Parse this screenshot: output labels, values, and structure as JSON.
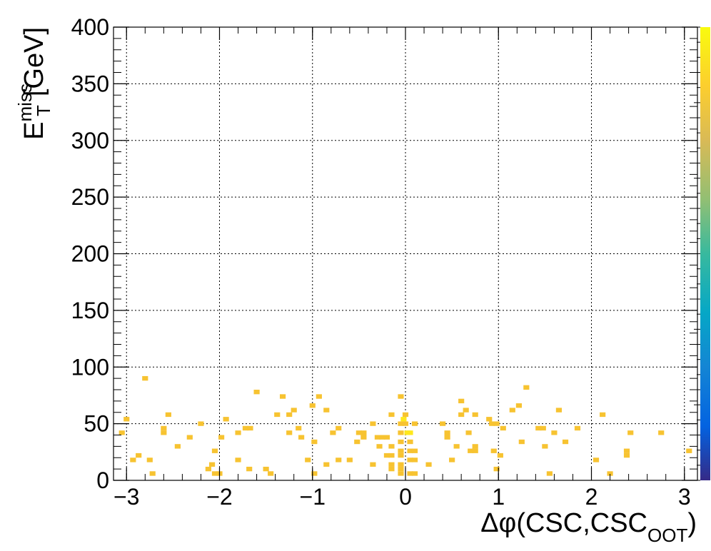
{
  "chart_data": {
    "type": "heatmap",
    "xlabel": "Δφ(CSC,CSC",
    "xlabel_subscript": "OOT",
    "xlabel_close": ")",
    "ylabel": "E",
    "ylabel_superscript": "miss",
    "ylabel_subscript": "T",
    "ylabel_unit": "[GeV]",
    "xlim": [
      -3.14,
      3.14
    ],
    "ylim": [
      0,
      400
    ],
    "x_ticks": [
      -3,
      -2,
      -1,
      0,
      1,
      2,
      3
    ],
    "x_tick_labels": [
      "−3",
      "−2",
      "−1",
      "0",
      "1",
      "2",
      "3"
    ],
    "y_ticks": [
      0,
      50,
      100,
      150,
      200,
      250,
      300,
      350,
      400
    ],
    "y_tick_labels": [
      "0",
      "50",
      "100",
      "150",
      "200",
      "250",
      "300",
      "350",
      "400"
    ],
    "grid": true,
    "colorbar": true,
    "colorbar_stops": [
      "#352a87",
      "#0363e1",
      "#1485d4",
      "#06a7c6",
      "#38b99e",
      "#92bf73",
      "#d9ba56",
      "#fcce2e",
      "#f9fb0e"
    ],
    "bin_width_x": 0.0628,
    "bin_width_y": 4,
    "color_low": "#f7c331",
    "color_high": "#ffe81c",
    "cells": [
      [
        -3.0,
        54,
        1
      ],
      [
        -3.05,
        42,
        1
      ],
      [
        -2.93,
        18,
        1
      ],
      [
        -2.87,
        22,
        1
      ],
      [
        -2.8,
        90,
        1
      ],
      [
        -2.75,
        18,
        1
      ],
      [
        -2.72,
        6,
        1
      ],
      [
        -2.6,
        46,
        1
      ],
      [
        -2.6,
        42,
        1
      ],
      [
        -2.55,
        58,
        1
      ],
      [
        -2.45,
        30,
        1
      ],
      [
        -2.32,
        38,
        1
      ],
      [
        -2.2,
        50,
        1
      ],
      [
        -2.12,
        10,
        1
      ],
      [
        -2.08,
        14,
        1
      ],
      [
        -2.05,
        26,
        1
      ],
      [
        -2.05,
        6,
        1
      ],
      [
        -2.0,
        6,
        1
      ],
      [
        -1.98,
        38,
        1
      ],
      [
        -1.93,
        54,
        1
      ],
      [
        -1.8,
        18,
        1
      ],
      [
        -1.8,
        42,
        1
      ],
      [
        -1.72,
        46,
        1
      ],
      [
        -1.67,
        46,
        1
      ],
      [
        -1.68,
        10,
        1
      ],
      [
        -1.6,
        78,
        1
      ],
      [
        -1.5,
        10,
        1
      ],
      [
        -1.45,
        6,
        1
      ],
      [
        -1.38,
        58,
        1
      ],
      [
        -1.32,
        74,
        1
      ],
      [
        -1.25,
        42,
        1
      ],
      [
        -1.25,
        58,
        1
      ],
      [
        -1.2,
        62,
        1
      ],
      [
        -1.15,
        46,
        1
      ],
      [
        -1.12,
        38,
        1
      ],
      [
        -1.05,
        18,
        1
      ],
      [
        -1.0,
        66,
        1
      ],
      [
        -0.98,
        34,
        1
      ],
      [
        -0.98,
        6,
        1
      ],
      [
        -0.93,
        74,
        1
      ],
      [
        -0.85,
        14,
        1
      ],
      [
        -0.85,
        62,
        1
      ],
      [
        -0.78,
        42,
        1
      ],
      [
        -0.72,
        46,
        1
      ],
      [
        -0.72,
        18,
        1
      ],
      [
        -0.6,
        18,
        1
      ],
      [
        -0.52,
        34,
        1
      ],
      [
        -0.5,
        42,
        1
      ],
      [
        -0.45,
        42,
        1
      ],
      [
        -0.45,
        38,
        1
      ],
      [
        -0.35,
        50,
        1
      ],
      [
        -0.35,
        14,
        1
      ],
      [
        -0.3,
        38,
        1
      ],
      [
        -0.28,
        30,
        1
      ],
      [
        -0.25,
        38,
        1
      ],
      [
        -0.2,
        38,
        1
      ],
      [
        -0.2,
        22,
        1
      ],
      [
        -0.15,
        22,
        1
      ],
      [
        -0.15,
        30,
        1
      ],
      [
        -0.15,
        58,
        1
      ],
      [
        -0.15,
        14,
        1
      ],
      [
        -0.15,
        10,
        1
      ],
      [
        -0.05,
        74,
        1
      ],
      [
        -0.05,
        50,
        1
      ],
      [
        -0.05,
        42,
        1
      ],
      [
        -0.05,
        34,
        1
      ],
      [
        -0.05,
        26,
        1
      ],
      [
        -0.05,
        22,
        1
      ],
      [
        -0.05,
        14,
        1
      ],
      [
        -0.05,
        10,
        1
      ],
      [
        -0.05,
        6,
        1
      ],
      [
        -0.02,
        54,
        2
      ],
      [
        0.0,
        58,
        1
      ],
      [
        0.0,
        50,
        1
      ],
      [
        0.02,
        42,
        2
      ],
      [
        0.05,
        42,
        2
      ],
      [
        0.05,
        34,
        1
      ],
      [
        0.05,
        26,
        1
      ],
      [
        0.05,
        18,
        1
      ],
      [
        0.05,
        6,
        1
      ],
      [
        0.1,
        50,
        1
      ],
      [
        0.1,
        26,
        1
      ],
      [
        0.1,
        18,
        1
      ],
      [
        0.1,
        6,
        1
      ],
      [
        0.25,
        14,
        1
      ],
      [
        0.4,
        50,
        1
      ],
      [
        0.45,
        42,
        1
      ],
      [
        0.45,
        38,
        1
      ],
      [
        0.5,
        18,
        1
      ],
      [
        0.55,
        30,
        1
      ],
      [
        0.6,
        70,
        1
      ],
      [
        0.6,
        58,
        1
      ],
      [
        0.65,
        62,
        1
      ],
      [
        0.68,
        42,
        1
      ],
      [
        0.7,
        26,
        1
      ],
      [
        0.75,
        58,
        1
      ],
      [
        0.75,
        30,
        1
      ],
      [
        0.75,
        26,
        1
      ],
      [
        0.9,
        54,
        1
      ],
      [
        0.93,
        50,
        1
      ],
      [
        0.95,
        26,
        1
      ],
      [
        0.98,
        50,
        1
      ],
      [
        0.98,
        10,
        1
      ],
      [
        1.02,
        22,
        1
      ],
      [
        1.05,
        46,
        1
      ],
      [
        1.15,
        62,
        1
      ],
      [
        1.22,
        66,
        1
      ],
      [
        1.25,
        34,
        1
      ],
      [
        1.3,
        82,
        1
      ],
      [
        1.43,
        46,
        1
      ],
      [
        1.48,
        46,
        1
      ],
      [
        1.5,
        30,
        1
      ],
      [
        1.55,
        6,
        1
      ],
      [
        1.6,
        42,
        1
      ],
      [
        1.65,
        62,
        1
      ],
      [
        1.72,
        34,
        1
      ],
      [
        1.85,
        46,
        1
      ],
      [
        2.05,
        18,
        1
      ],
      [
        2.12,
        58,
        1
      ],
      [
        2.2,
        6,
        1
      ],
      [
        2.38,
        26,
        1
      ],
      [
        2.38,
        22,
        1
      ],
      [
        2.42,
        42,
        1
      ],
      [
        2.75,
        42,
        1
      ],
      [
        3.05,
        26,
        1
      ]
    ]
  }
}
